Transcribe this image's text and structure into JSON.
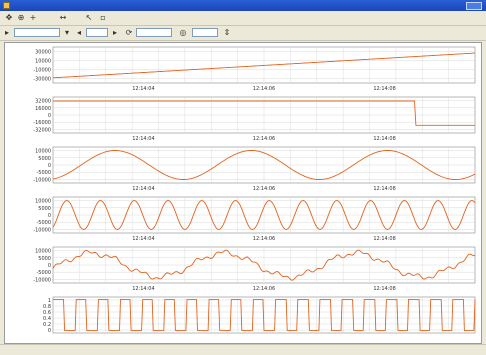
{
  "window": {
    "title": "",
    "accent_color": "#1c46b8"
  },
  "toolbar1": {
    "buttons": [
      "move-icon",
      "zoom-in-icon",
      "pan-icon",
      "cursor-icon",
      "window-icon"
    ]
  },
  "toolbar2": {
    "field1_value": "",
    "field2_value": "",
    "field3_value": "",
    "zoom_value": ""
  },
  "status": {
    "left": "",
    "middle": "",
    "right": ""
  },
  "trace_color": "#e2641e",
  "chart_data": [
    {
      "type": "line",
      "ylabel": "",
      "yticks": [
        "30000",
        "10000",
        "-10000",
        "-30000"
      ],
      "ylim": [
        -32768,
        32767
      ],
      "shape": "ramp",
      "xticks": [
        "12:14:04",
        "12:14:06",
        "12:14:08"
      ]
    },
    {
      "type": "line",
      "ylabel": "",
      "yticks": [
        "32000",
        "16000",
        "0",
        "-16000",
        "-32000"
      ],
      "ylim": [
        -32768,
        32767
      ],
      "shape": "step",
      "xticks": [
        "12:14:04",
        "12:14:06",
        "12:14:08"
      ]
    },
    {
      "type": "line",
      "ylabel": "",
      "yticks": [
        "10000",
        "5000",
        "0",
        "-5000",
        "-10000"
      ],
      "ylim": [
        -12000,
        12000
      ],
      "shape": "sine-slow",
      "xticks": [
        "12:14:04",
        "12:14:06",
        "12:14:08"
      ]
    },
    {
      "type": "line",
      "ylabel": "",
      "yticks": [
        "10000",
        "5000",
        "0",
        "-5000",
        "-10000"
      ],
      "ylim": [
        -12000,
        12000
      ],
      "shape": "sine-fast",
      "xticks": [
        "12:14:04",
        "12:14:06",
        "12:14:08"
      ]
    },
    {
      "type": "line",
      "ylabel": "",
      "yticks": [
        "10000",
        "5000",
        "0",
        "-5000",
        "-10000"
      ],
      "ylim": [
        -12000,
        12000
      ],
      "shape": "sine-noise",
      "xticks": [
        "12:14:04",
        "12:14:06",
        "12:14:08"
      ]
    },
    {
      "type": "line",
      "ylabel": "",
      "yticks": [
        "1",
        "0.8",
        "0.6",
        "0.4",
        "0.2",
        "0"
      ],
      "ylim": [
        0,
        1
      ],
      "shape": "pulse",
      "xticks": []
    }
  ]
}
